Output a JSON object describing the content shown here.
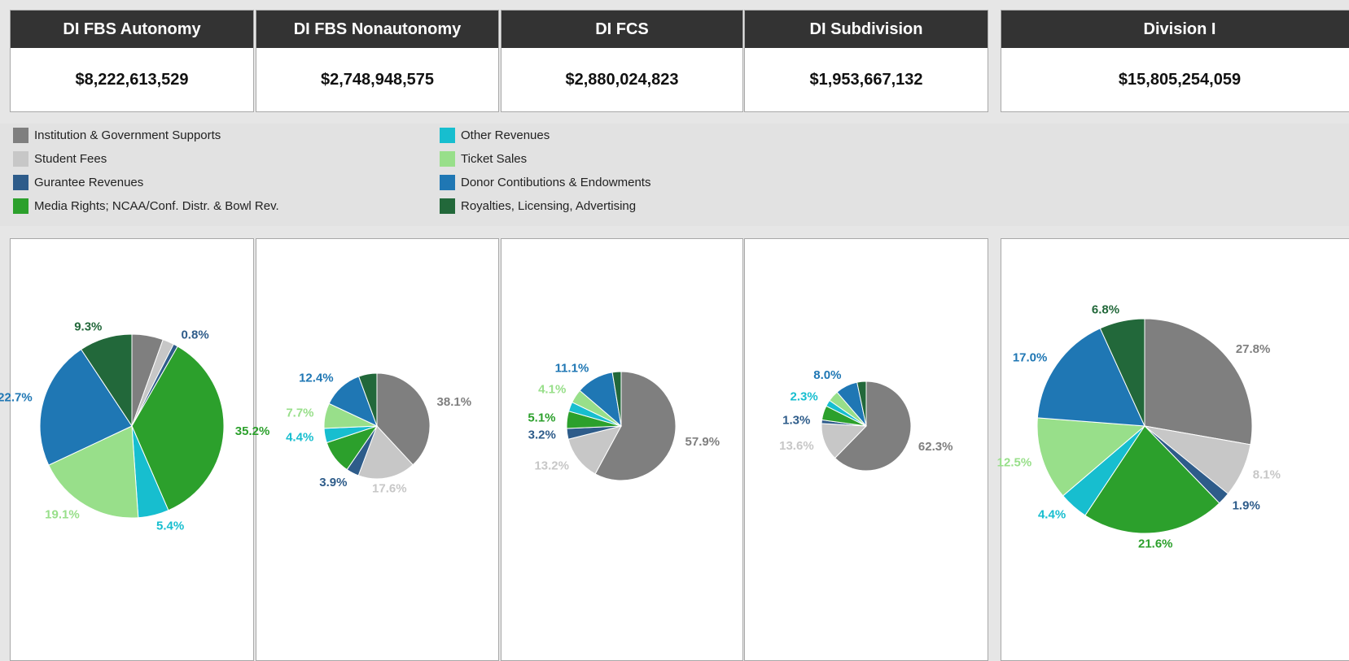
{
  "legend": {
    "categories": [
      "Institution & Government Supports",
      "Student Fees",
      "Gurantee Revenues",
      "Media Rights; NCAA/Conf. Distr. & Bowl Rev.",
      "Other Revenues",
      "Ticket Sales",
      "Donor Contibutions & Endowments",
      "Royalties, Licensing, Advertising"
    ],
    "colors": [
      "#7f7f7f",
      "#c7c7c7",
      "#2e5c8a",
      "#2ca02c",
      "#17becf",
      "#98df8a",
      "#1f77b4",
      "#22683a"
    ]
  },
  "chart_data": [
    {
      "type": "pie",
      "title": "DI FBS Autonomy",
      "total": "$8,222,613,529",
      "values": [
        5.5,
        2.0,
        0.8,
        35.2,
        5.4,
        19.1,
        22.7,
        9.3
      ],
      "value_labels": [
        null,
        null,
        "0.8%",
        "35.2%",
        "5.4%",
        "19.1%",
        "22.7%",
        "9.3%"
      ]
    },
    {
      "type": "pie",
      "title": "DI FBS Nonautonomy",
      "total": "$2,748,948,575",
      "values": [
        38.1,
        17.6,
        3.9,
        10.3,
        4.4,
        7.7,
        12.4,
        5.6
      ],
      "value_labels": [
        "38.1%",
        "17.6%",
        "3.9%",
        null,
        "4.4%",
        "7.7%",
        "12.4%",
        null
      ]
    },
    {
      "type": "pie",
      "title": "DI FCS",
      "total": "$2,880,024,823",
      "values": [
        57.9,
        13.2,
        3.2,
        5.1,
        2.8,
        4.1,
        11.1,
        2.6
      ],
      "value_labels": [
        "57.9%",
        "13.2%",
        "3.2%",
        "5.1%",
        null,
        "4.1%",
        "11.1%",
        null
      ]
    },
    {
      "type": "pie",
      "title": "DI Subdivision",
      "total": "$1,953,667,132",
      "values": [
        62.3,
        13.6,
        1.3,
        5.2,
        2.3,
        4.0,
        8.0,
        3.3
      ],
      "value_labels": [
        "62.3%",
        "13.6%",
        "1.3%",
        null,
        "2.3%",
        null,
        "8.0%",
        null
      ]
    },
    {
      "type": "pie",
      "title": "Division I",
      "total": "$15,805,254,059",
      "values": [
        27.8,
        8.1,
        1.9,
        21.6,
        4.4,
        12.5,
        17.0,
        6.8
      ],
      "value_labels": [
        "27.8%",
        "8.1%",
        "1.9%",
        "21.6%",
        "4.4%",
        "12.5%",
        "17.0%",
        "6.8%"
      ]
    }
  ]
}
